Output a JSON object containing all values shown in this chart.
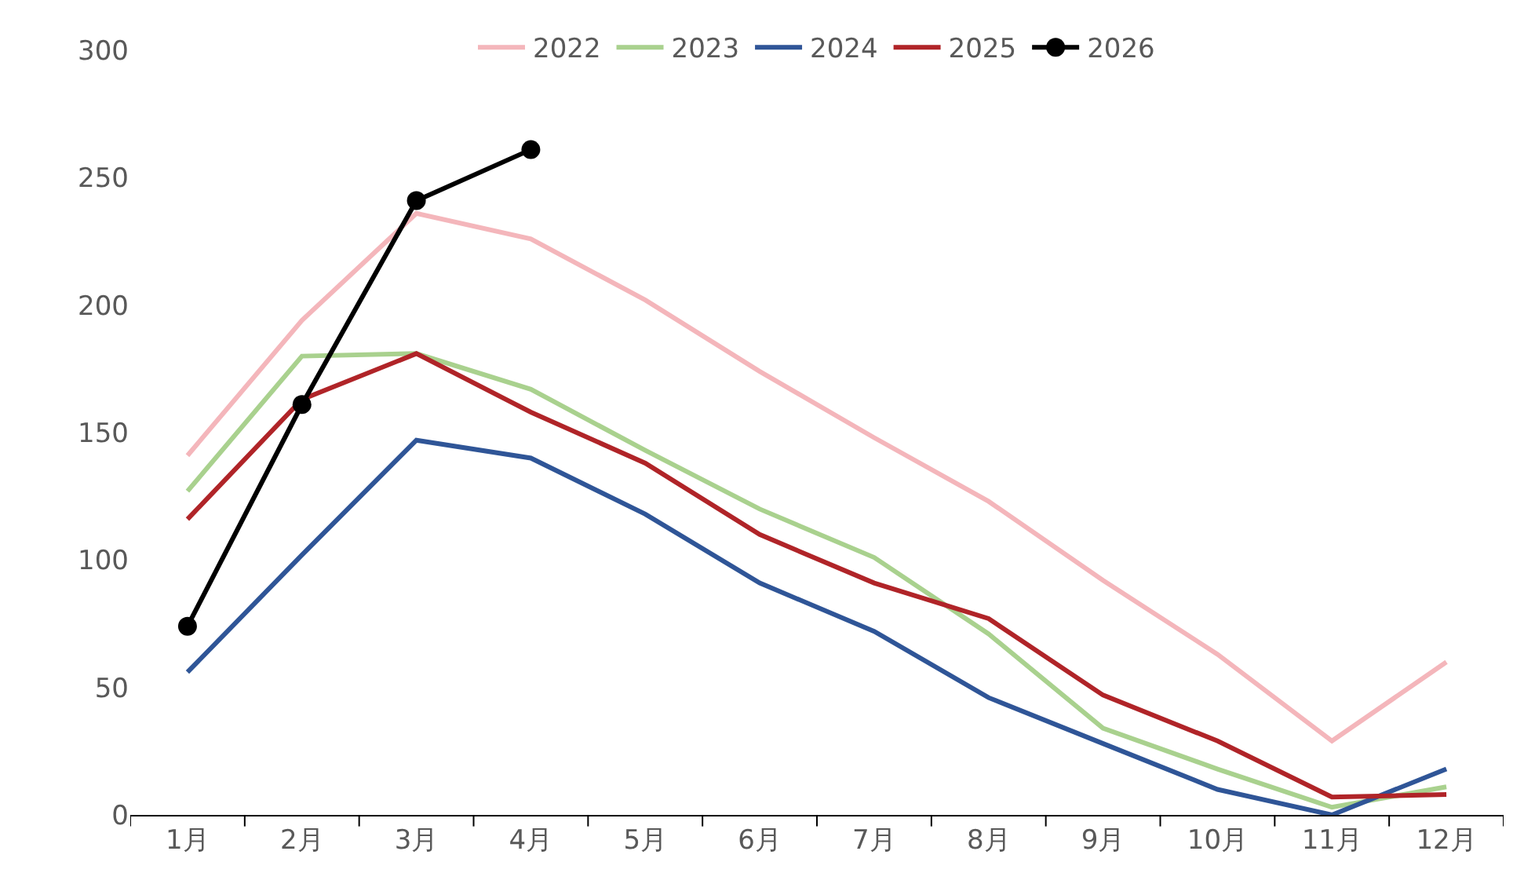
{
  "chart_data": {
    "type": "line",
    "categories": [
      "1月",
      "2月",
      "3月",
      "4月",
      "5月",
      "6月",
      "7月",
      "8月",
      "9月",
      "10月",
      "11月",
      "12月"
    ],
    "series": [
      {
        "name": "2022",
        "color": "#f4b6bb",
        "marker": "none",
        "values": [
          141,
          194,
          236,
          226,
          202,
          174,
          148,
          123,
          92,
          63,
          29,
          60
        ]
      },
      {
        "name": "2023",
        "color": "#a9d18e",
        "marker": "none",
        "values": [
          127,
          180,
          181,
          167,
          143,
          120,
          101,
          71,
          34,
          18,
          3,
          11
        ]
      },
      {
        "name": "2024",
        "color": "#2f5597",
        "marker": "none",
        "values": [
          56,
          102,
          147,
          140,
          118,
          91,
          72,
          46,
          28,
          10,
          0,
          18
        ]
      },
      {
        "name": "2025",
        "color": "#b02428",
        "marker": "none",
        "values": [
          116,
          163,
          181,
          158,
          138,
          110,
          91,
          77,
          47,
          29,
          7,
          8
        ]
      },
      {
        "name": "2026",
        "color": "#000000",
        "marker": "circle",
        "values": [
          74,
          161,
          241,
          261,
          null,
          null,
          null,
          null,
          null,
          null,
          null,
          null
        ]
      }
    ],
    "ylim": [
      0,
      300
    ],
    "yticks": [
      0,
      50,
      100,
      150,
      200,
      250,
      300
    ],
    "grid": false,
    "legend": "top",
    "line_style": "solid"
  }
}
